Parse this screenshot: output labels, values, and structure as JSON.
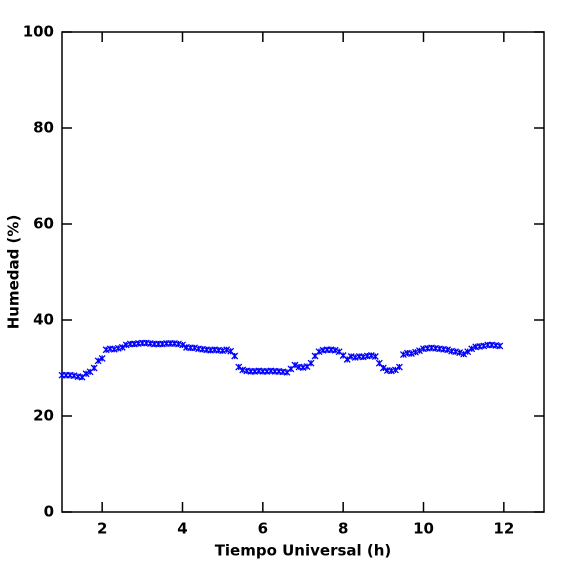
{
  "chart_data": {
    "type": "scatter",
    "xlabel": "Tiempo Universal (h)",
    "ylabel": "Humedad (%)",
    "xlim": [
      1,
      13
    ],
    "ylim": [
      0,
      100
    ],
    "xticks": [
      2,
      4,
      6,
      8,
      10,
      12
    ],
    "yticks": [
      0,
      20,
      40,
      60,
      80,
      100
    ],
    "color": "#0000ff",
    "x": [
      1.0,
      1.1,
      1.2,
      1.3,
      1.4,
      1.5,
      1.6,
      1.7,
      1.8,
      1.9,
      2.0,
      2.1,
      2.2,
      2.3,
      2.4,
      2.5,
      2.6,
      2.7,
      2.8,
      2.9,
      3.0,
      3.1,
      3.2,
      3.3,
      3.4,
      3.5,
      3.6,
      3.7,
      3.8,
      3.9,
      4.0,
      4.1,
      4.2,
      4.3,
      4.4,
      4.5,
      4.6,
      4.7,
      4.8,
      4.9,
      5.0,
      5.1,
      5.2,
      5.3,
      5.4,
      5.5,
      5.6,
      5.7,
      5.8,
      5.9,
      6.0,
      6.1,
      6.2,
      6.3,
      6.4,
      6.5,
      6.6,
      6.7,
      6.8,
      6.9,
      7.0,
      7.1,
      7.2,
      7.3,
      7.4,
      7.5,
      7.6,
      7.7,
      7.8,
      7.9,
      8.0,
      8.1,
      8.2,
      8.3,
      8.4,
      8.5,
      8.6,
      8.7,
      8.8,
      8.9,
      9.0,
      9.1,
      9.2,
      9.3,
      9.4,
      9.5,
      9.6,
      9.7,
      9.8,
      9.9,
      10.0,
      10.1,
      10.2,
      10.3,
      10.4,
      10.5,
      10.6,
      10.7,
      10.8,
      10.9,
      11.0,
      11.1,
      11.2,
      11.3,
      11.4,
      11.5,
      11.6,
      11.7,
      11.8,
      11.9
    ],
    "values": [
      28.5,
      28.5,
      28.5,
      28.4,
      28.2,
      28.1,
      28.8,
      29.2,
      30.0,
      31.5,
      32.0,
      33.8,
      34.0,
      33.9,
      34.1,
      34.3,
      34.8,
      35.0,
      35.0,
      35.1,
      35.2,
      35.2,
      35.1,
      35.0,
      35.0,
      35.0,
      35.1,
      35.1,
      35.1,
      35.0,
      34.8,
      34.3,
      34.2,
      34.2,
      34.0,
      33.9,
      33.8,
      33.7,
      33.8,
      33.7,
      33.6,
      33.8,
      33.5,
      32.5,
      30.2,
      29.6,
      29.4,
      29.3,
      29.3,
      29.4,
      29.3,
      29.3,
      29.4,
      29.3,
      29.3,
      29.2,
      29.1,
      29.8,
      30.6,
      30.2,
      30.1,
      30.3,
      31.0,
      32.5,
      33.4,
      33.7,
      33.8,
      33.8,
      33.7,
      33.4,
      32.6,
      31.8,
      32.4,
      32.2,
      32.4,
      32.3,
      32.5,
      32.6,
      32.4,
      31.0,
      30.0,
      29.5,
      29.4,
      29.6,
      30.2,
      32.8,
      33.1,
      33.0,
      33.3,
      33.6,
      34.0,
      34.1,
      34.2,
      34.1,
      34.0,
      33.9,
      33.8,
      33.5,
      33.4,
      33.2,
      32.9,
      33.4,
      34.0,
      34.4,
      34.5,
      34.6,
      34.8,
      34.8,
      34.7,
      34.6
    ]
  }
}
